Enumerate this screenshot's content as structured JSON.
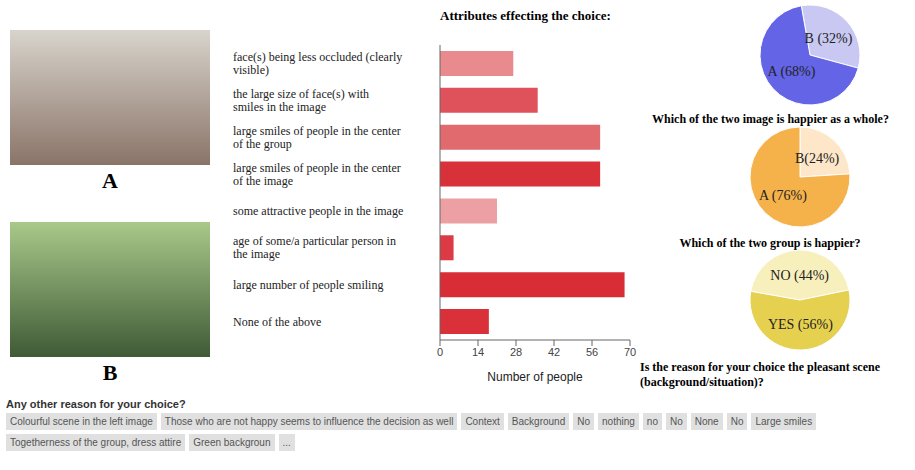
{
  "images": [
    {
      "label": "A"
    },
    {
      "label": "B"
    }
  ],
  "chart_data": [
    {
      "type": "bar",
      "title": "Attributes effecting the choice:",
      "orientation": "horizontal",
      "categories": [
        "face(s) being less occluded (clearly visible)",
        "the large size of face(s) with smiles in the image",
        "large smiles of people in the center of the group",
        "large smiles of people in the center of the image",
        "some attractive people in the image",
        "age of some/a particular person in the image",
        "large number of people smiling",
        "None of the above"
      ],
      "values": [
        27,
        36,
        59,
        59,
        21,
        5,
        68,
        18
      ],
      "colors": [
        "#e98a8f",
        "#e0525b",
        "#e06a6e",
        "#d9313a",
        "#eda0a4",
        "#dc3a44",
        "#d82c36",
        "#d9303a"
      ],
      "x_label": "Number of people",
      "xlim": [
        0,
        70
      ],
      "xticks": [
        0,
        14,
        28,
        42,
        56,
        70
      ]
    },
    {
      "type": "pie",
      "title": "Which of the two image is happier as a whole?",
      "categories": [
        "B",
        "A"
      ],
      "values": [
        32,
        68
      ],
      "value_labels": [
        "B (32%)",
        "A (68%)"
      ],
      "colors": [
        "#c8c8f2",
        "#6464e6"
      ],
      "data_labels": true
    },
    {
      "type": "pie",
      "title": "Which of the two group is happier?",
      "categories": [
        "B",
        "A"
      ],
      "values": [
        24,
        76
      ],
      "value_labels": [
        "B(24%)",
        "A (76%)"
      ],
      "colors": [
        "#fde7c8",
        "#f6b24a"
      ],
      "data_labels": true
    },
    {
      "type": "pie",
      "title": "Is the reason for your choice the pleasant scene (background/situation)?",
      "categories": [
        "NO",
        "YES"
      ],
      "values": [
        44,
        56
      ],
      "value_labels": [
        "NO (44%)",
        "YES (56%)"
      ],
      "colors": [
        "#f8f0bc",
        "#e6d050"
      ],
      "data_labels": true
    }
  ],
  "comments": {
    "title": "Any other reason for your choice?",
    "items": [
      "Colourful scene in the left image",
      "Those who are not happy seems to influence the decision as well",
      "Context",
      "Background",
      "No",
      "nothing",
      "no",
      "No",
      "None",
      "No",
      "Large smiles",
      "Togetherness of the group, dress attire",
      "Green backgroun",
      "..."
    ]
  }
}
